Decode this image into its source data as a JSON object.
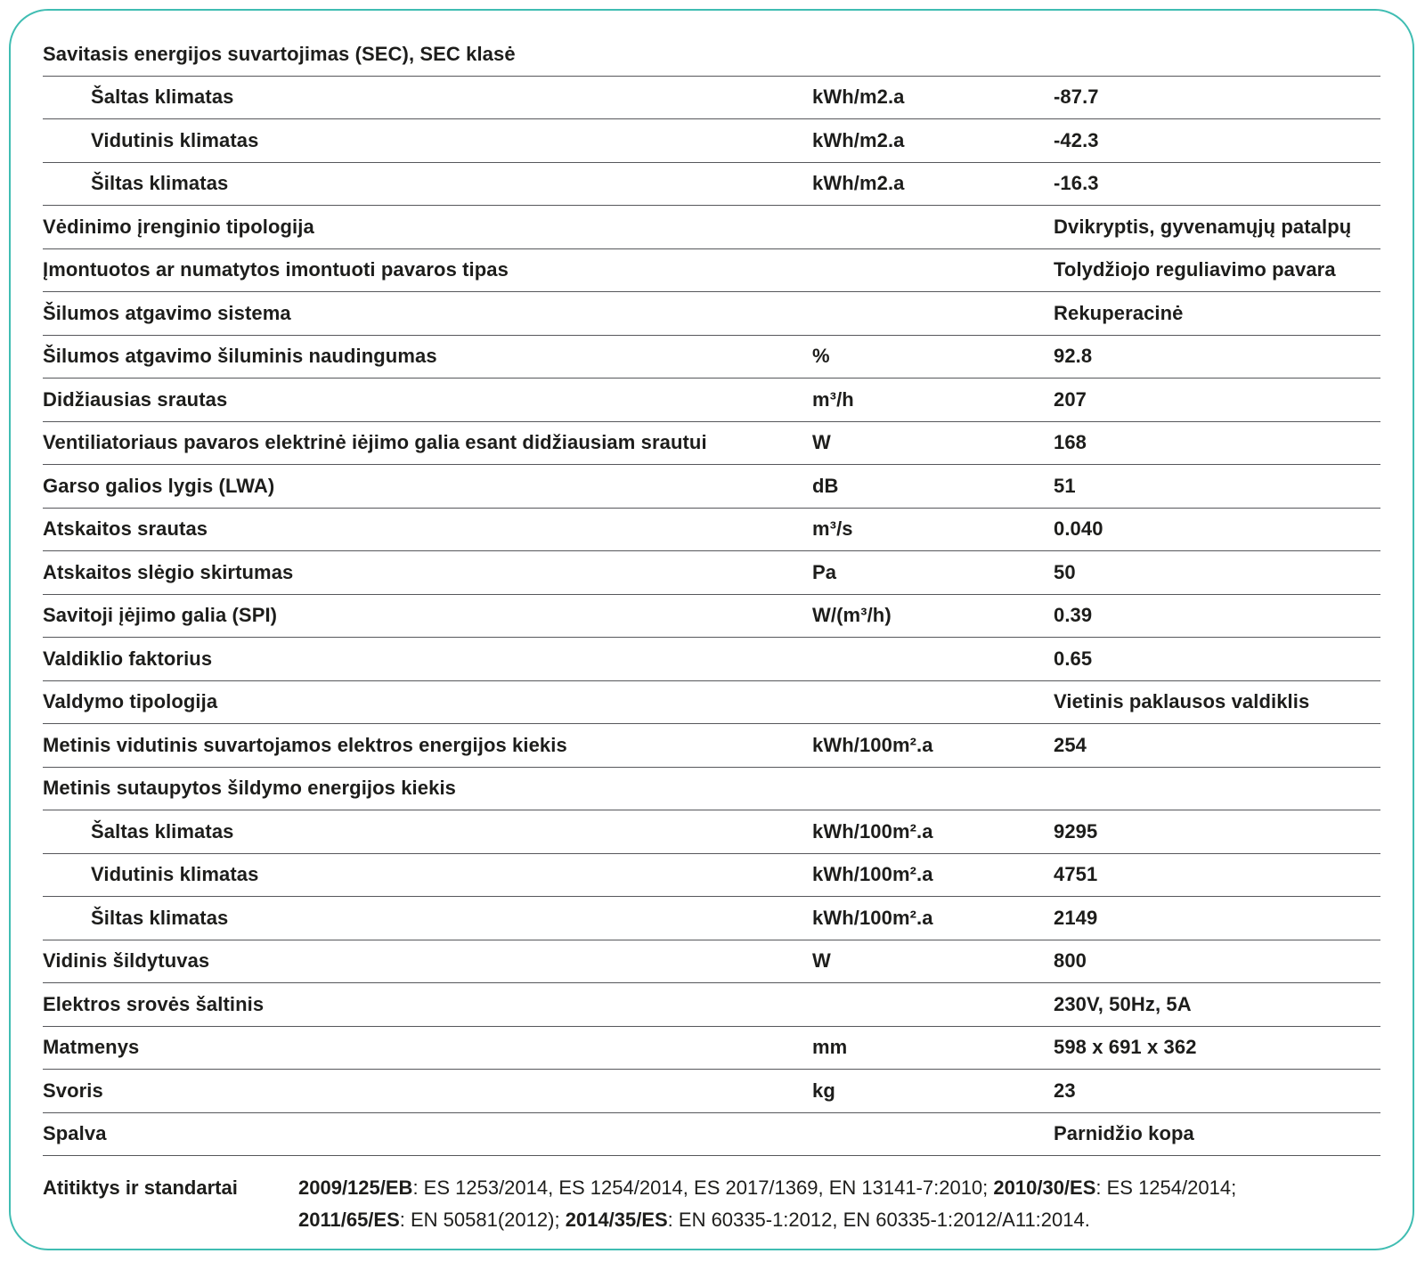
{
  "card": {
    "accent_color": "#3fbdb2",
    "divider_color": "#56575b",
    "text_color": "#1d1d1b"
  },
  "table": {
    "rows": [
      {
        "style": "section",
        "label": "Savitasis energijos suvartojimas (SEC), SEC klasė",
        "unit": "",
        "value": ""
      },
      {
        "style": "sub",
        "label": "Šaltas klimatas",
        "unit": "kWh/m2.a",
        "value": "-87.7"
      },
      {
        "style": "sub",
        "label": "Vidutinis klimatas",
        "unit": "kWh/m2.a",
        "value": "-42.3"
      },
      {
        "style": "sub",
        "label": "Šiltas klimatas",
        "unit": "kWh/m2.a",
        "value": "-16.3"
      },
      {
        "style": "normal",
        "label": "Vėdinimo įrenginio tipologija",
        "unit": "",
        "value": "Dvikryptis, gyvenamųjų patalpų"
      },
      {
        "style": "normal",
        "label": "Įmontuotos ar numatytos imontuoti pavaros tipas",
        "unit": "",
        "value": "Tolydžiojo reguliavimo pavara"
      },
      {
        "style": "normal",
        "label": "Šilumos atgavimo sistema",
        "unit": "",
        "value": "Rekuperacinė"
      },
      {
        "style": "normal",
        "label": "Šilumos atgavimo šiluminis naudingumas",
        "unit": "%",
        "value": "92.8"
      },
      {
        "style": "normal",
        "label": "Didžiausias srautas",
        "unit": "m³/h",
        "value": "207"
      },
      {
        "style": "normal",
        "label": "Ventiliatoriaus pavaros elektrinė iėjimo galia esant didžiausiam srautui",
        "unit": "W",
        "value": "168"
      },
      {
        "style": "normal",
        "label": "Garso galios lygis (LWA)",
        "unit": "dB",
        "value": "51"
      },
      {
        "style": "normal",
        "label": "Atskaitos srautas",
        "unit": "m³/s",
        "value": "0.040"
      },
      {
        "style": "normal",
        "label": "Atskaitos slėgio skirtumas",
        "unit": "Pa",
        "value": "50"
      },
      {
        "style": "normal",
        "label": "Savitoji įėjimo galia (SPI)",
        "unit": "W/(m³/h)",
        "value": "0.39"
      },
      {
        "style": "normal",
        "label": "Valdiklio faktorius",
        "unit": "",
        "value": "0.65"
      },
      {
        "style": "normal",
        "label": "Valdymo tipologija",
        "unit": "",
        "value": "Vietinis paklausos valdiklis"
      },
      {
        "style": "normal",
        "label": "Metinis vidutinis suvartojamos elektros energijos kiekis",
        "unit": "kWh/100m².a",
        "value": "254"
      },
      {
        "style": "section",
        "label": "Metinis sutaupytos šildymo energijos kiekis",
        "unit": "",
        "value": ""
      },
      {
        "style": "sub",
        "label": "Šaltas klimatas",
        "unit": "kWh/100m².a",
        "value": "9295"
      },
      {
        "style": "sub",
        "label": "Vidutinis klimatas",
        "unit": "kWh/100m².a",
        "value": "4751"
      },
      {
        "style": "sub",
        "label": "Šiltas klimatas",
        "unit": "kWh/100m².a",
        "value": "2149"
      },
      {
        "style": "normal",
        "label": "Vidinis šildytuvas",
        "unit": "W",
        "value": "800"
      },
      {
        "style": "normal",
        "label": "Elektros srovės šaltinis",
        "unit": "",
        "value": "230V, 50Hz, 5A"
      },
      {
        "style": "normal",
        "label": "Matmenys",
        "unit": "mm",
        "value": "598 x 691 x 362"
      },
      {
        "style": "normal",
        "label": "Svoris",
        "unit": "kg",
        "value": "23"
      },
      {
        "style": "normal",
        "label": "Spalva",
        "unit": "",
        "value": "Parnidžio kopa"
      }
    ]
  },
  "standards": {
    "label": "Atitiktys ir standartai",
    "lines": [
      [
        {
          "text": "2009/125/EB",
          "bold": true
        },
        {
          "text": ": ES 1253/2014, ES 1254/2014, ES 2017/1369, EN 13141-7:2010; ",
          "bold": false
        },
        {
          "text": "2010/30/ES",
          "bold": true
        },
        {
          "text": ": ES 1254/2014;",
          "bold": false
        }
      ],
      [
        {
          "text": "2011/65/ES",
          "bold": true
        },
        {
          "text": ": EN 50581(2012); ",
          "bold": false
        },
        {
          "text": "2014/35/ES",
          "bold": true
        },
        {
          "text": ": EN 60335-1:2012, EN 60335-1:2012/A11:2014.",
          "bold": false
        }
      ]
    ]
  }
}
